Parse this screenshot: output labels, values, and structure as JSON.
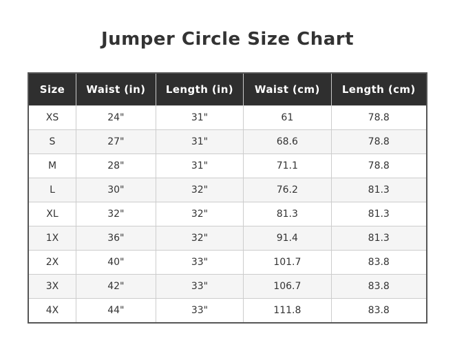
{
  "page": {
    "title": "Jumper Circle Size Chart"
  },
  "colors": {
    "header_bg": "#2f2f2f",
    "header_text": "#ffffff",
    "row_bg": "#ffffff",
    "row_alt_bg": "#f5f5f5",
    "cell_border": "#cccccc",
    "outer_border": "#555555",
    "text": "#333333"
  },
  "chart_data": {
    "type": "table",
    "title": "Jumper Circle Size Chart",
    "columns": [
      "Size",
      "Waist (in)",
      "Length (in)",
      "Waist (cm)",
      "Length (cm)"
    ],
    "rows": [
      [
        "XS",
        "24\"",
        "31\"",
        "61",
        "78.8"
      ],
      [
        "S",
        "27\"",
        "31\"",
        "68.6",
        "78.8"
      ],
      [
        "M",
        "28\"",
        "31\"",
        "71.1",
        "78.8"
      ],
      [
        "L",
        "30\"",
        "32\"",
        "76.2",
        "81.3"
      ],
      [
        "XL",
        "32\"",
        "32\"",
        "81.3",
        "81.3"
      ],
      [
        "1X",
        "36\"",
        "32\"",
        "91.4",
        "81.3"
      ],
      [
        "2X",
        "40\"",
        "33\"",
        "101.7",
        "83.8"
      ],
      [
        "3X",
        "42\"",
        "33\"",
        "106.7",
        "83.8"
      ],
      [
        "4X",
        "44\"",
        "33\"",
        "111.8",
        "83.8"
      ]
    ]
  }
}
